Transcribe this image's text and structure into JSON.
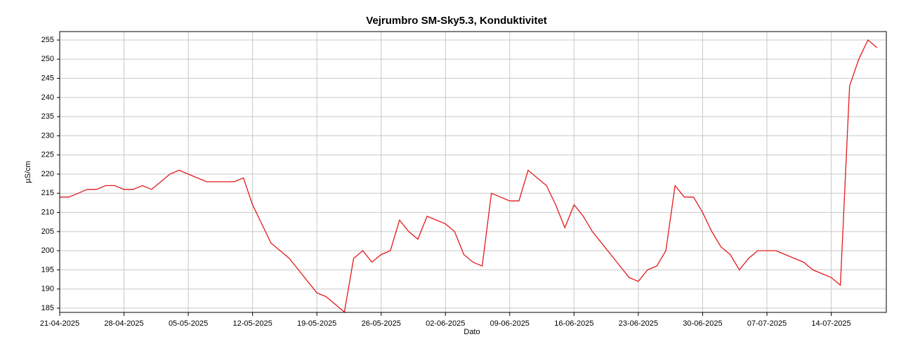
{
  "chart_data": {
    "type": "line",
    "title": "Vejrumbro SM-Sky5.3, Konduktivitet",
    "x_label": "Dato",
    "y_label": "µS/cm",
    "color": "#e31a1c",
    "grid": true,
    "x": [
      "21-04-2025",
      "22-04-2025",
      "23-04-2025",
      "24-04-2025",
      "25-04-2025",
      "26-04-2025",
      "27-04-2025",
      "28-04-2025",
      "29-04-2025",
      "30-04-2025",
      "01-05-2025",
      "02-05-2025",
      "03-05-2025",
      "04-05-2025",
      "05-05-2025",
      "06-05-2025",
      "07-05-2025",
      "08-05-2025",
      "09-05-2025",
      "10-05-2025",
      "11-05-2025",
      "12-05-2025",
      "13-05-2025",
      "14-05-2025",
      "15-05-2025",
      "16-05-2025",
      "17-05-2025",
      "18-05-2025",
      "19-05-2025",
      "20-05-2025",
      "21-05-2025",
      "22-05-2025",
      "23-05-2025",
      "24-05-2025",
      "25-05-2025",
      "26-05-2025",
      "27-05-2025",
      "28-05-2025",
      "29-05-2025",
      "30-05-2025",
      "31-05-2025",
      "01-06-2025",
      "02-06-2025",
      "03-06-2025",
      "04-06-2025",
      "05-06-2025",
      "06-06-2025",
      "07-06-2025",
      "08-06-2025",
      "09-06-2025",
      "10-06-2025",
      "11-06-2025",
      "12-06-2025",
      "13-06-2025",
      "14-06-2025",
      "15-06-2025",
      "16-06-2025",
      "17-06-2025",
      "18-06-2025",
      "19-06-2025",
      "20-06-2025",
      "21-06-2025",
      "22-06-2025",
      "23-06-2025",
      "24-06-2025",
      "25-06-2025",
      "26-06-2025",
      "27-06-2025",
      "28-06-2025",
      "29-06-2025",
      "30-06-2025",
      "01-07-2025",
      "02-07-2025",
      "03-07-2025",
      "04-07-2025",
      "05-07-2025",
      "06-07-2025",
      "07-07-2025",
      "08-07-2025",
      "09-07-2025",
      "10-07-2025",
      "11-07-2025",
      "12-07-2025",
      "13-07-2025",
      "14-07-2025",
      "15-07-2025",
      "16-07-2025",
      "17-07-2025",
      "18-07-2025",
      "19-07-2025"
    ],
    "values": [
      214,
      214,
      215,
      216,
      216,
      217,
      217,
      216,
      216,
      217,
      216,
      218,
      220,
      221,
      220,
      219,
      218,
      218,
      218,
      218,
      219,
      212,
      207,
      202,
      200,
      198,
      195,
      192,
      189,
      188,
      186,
      184,
      198,
      200,
      197,
      199,
      200,
      208,
      205,
      203,
      209,
      208,
      207,
      205,
      199,
      197,
      196,
      215,
      214,
      213,
      213,
      221,
      219,
      217,
      212,
      206,
      212,
      209,
      205,
      202,
      199,
      196,
      193,
      192,
      195,
      196,
      200,
      217,
      214,
      214,
      210,
      205,
      201,
      199,
      195,
      198,
      200,
      200,
      200,
      199,
      198,
      197,
      195,
      194,
      193,
      191,
      243,
      250,
      255,
      253
    ],
    "xlim": [
      "21-04-2025",
      "20-07-2025"
    ],
    "xticks": [
      "21-04-2025",
      "28-04-2025",
      "05-05-2025",
      "12-05-2025",
      "19-05-2025",
      "26-05-2025",
      "02-06-2025",
      "09-06-2025",
      "16-06-2025",
      "23-06-2025",
      "30-06-2025",
      "07-07-2025",
      "14-07-2025"
    ],
    "ylim": [
      183.9,
      257.2
    ],
    "yticks": [
      185,
      190,
      195,
      200,
      205,
      210,
      215,
      220,
      225,
      230,
      235,
      240,
      245,
      250,
      255
    ]
  }
}
